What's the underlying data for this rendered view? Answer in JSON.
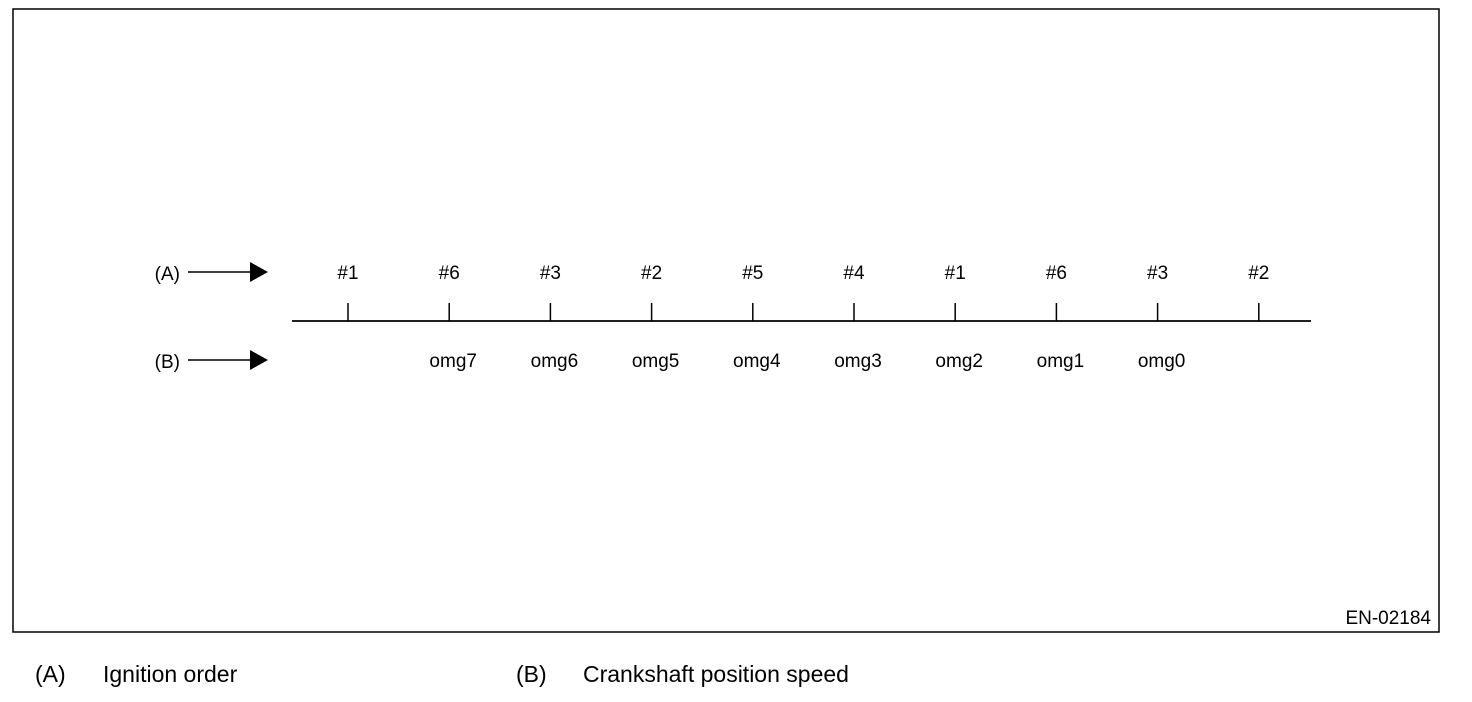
{
  "diagram": {
    "code": "EN-02184",
    "rows": {
      "a": {
        "marker": "(A)"
      },
      "b": {
        "marker": "(B)"
      }
    },
    "ignition_order": [
      "#1",
      "#6",
      "#3",
      "#2",
      "#5",
      "#4",
      "#1",
      "#6",
      "#3",
      "#2"
    ],
    "crankshaft_speeds": [
      "omg7",
      "omg6",
      "omg5",
      "omg4",
      "omg3",
      "omg2",
      "omg1",
      "omg0"
    ]
  },
  "legend": {
    "a": {
      "marker": "(A)",
      "text": "Ignition order"
    },
    "b": {
      "marker": "(B)",
      "text": "Crankshaft position speed"
    }
  },
  "colors": {
    "ink": "#000000",
    "background": "#ffffff"
  }
}
